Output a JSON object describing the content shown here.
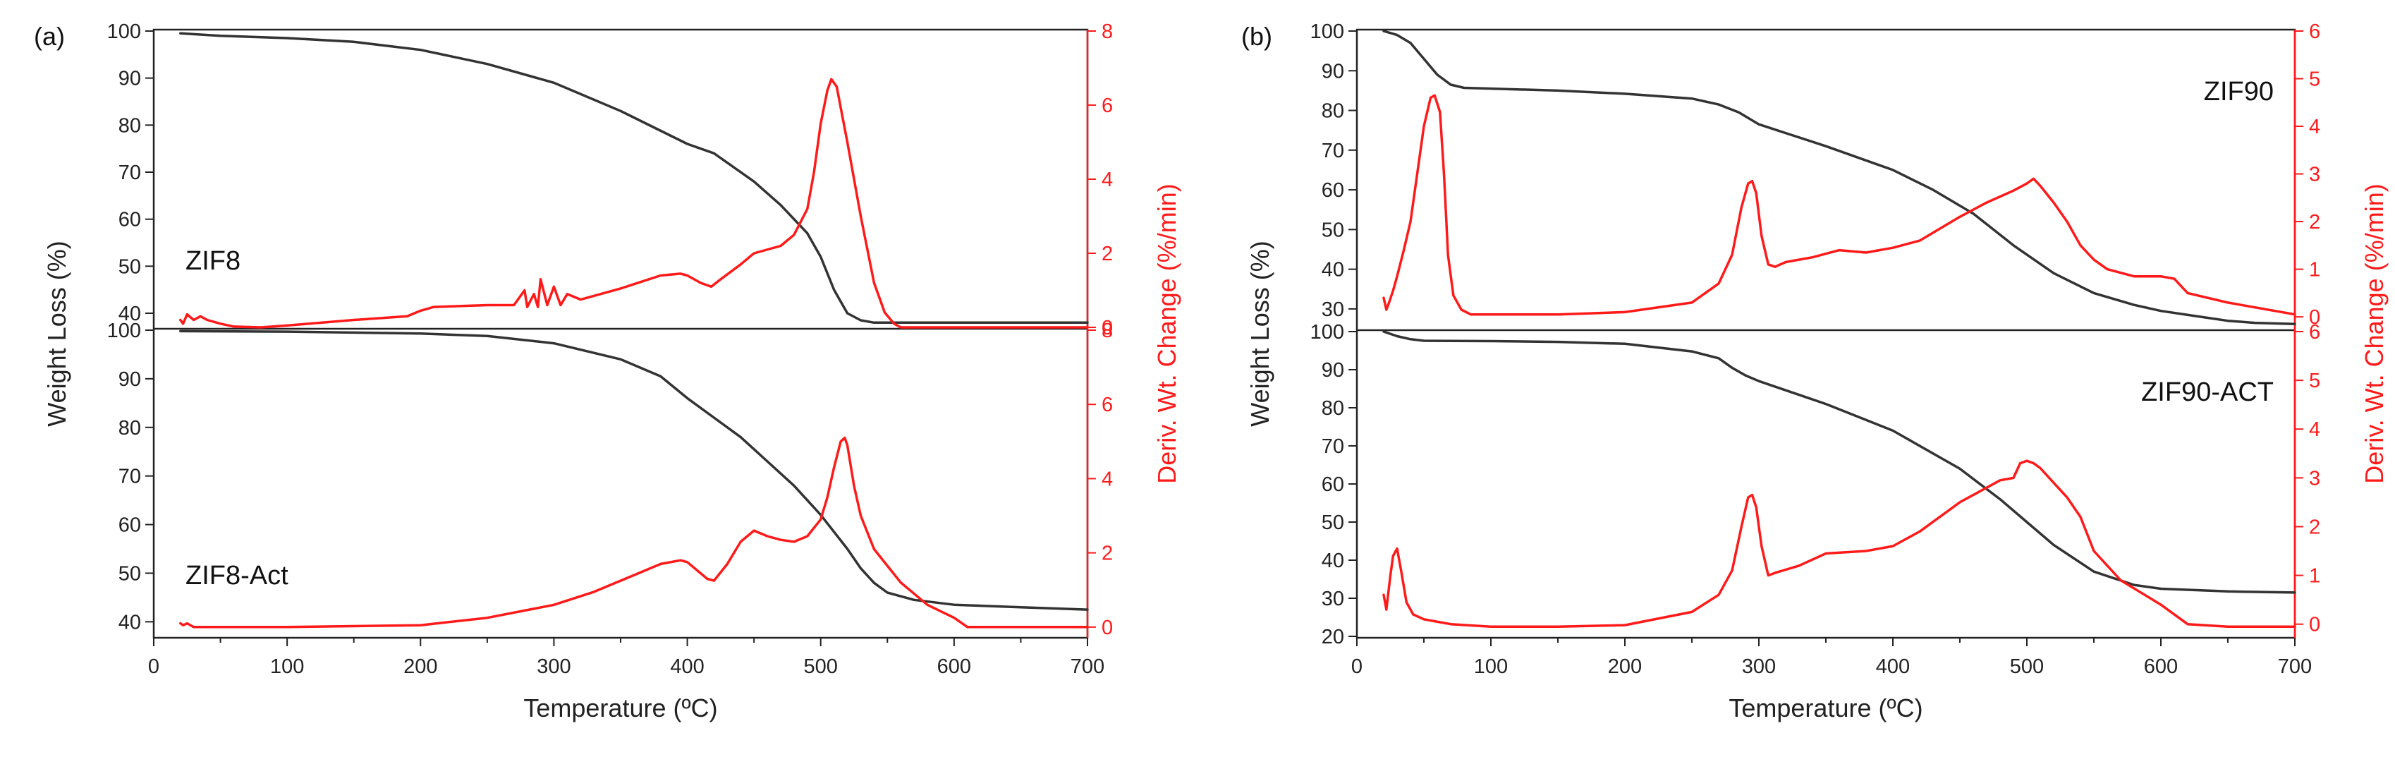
{
  "panels": [
    {
      "label": "(a)",
      "xlabel": "Temperature (ºC)",
      "ylabel_left": "Weight Loss (%)",
      "ylabel_right": "Deriv. Wt. Change (%/min)",
      "xlim": [
        0,
        700
      ],
      "xticks": [
        0,
        100,
        200,
        300,
        400,
        500,
        600,
        700
      ],
      "subplots": [
        {
          "annotation": "ZIF8",
          "ylim_left": [
            37,
            100
          ],
          "ylim_right": [
            0,
            8
          ],
          "yticks_left": [
            40,
            50,
            60,
            70,
            80,
            90,
            100
          ],
          "yticks_right": [
            0,
            2,
            4,
            6,
            8
          ]
        },
        {
          "annotation": "ZIF8-Act",
          "ylim_left": [
            37,
            100
          ],
          "ylim_right": [
            -0.25,
            8
          ],
          "yticks_left": [
            40,
            50,
            60,
            70,
            80,
            90,
            100
          ],
          "yticks_right": [
            0,
            2,
            4,
            6,
            8
          ]
        }
      ]
    },
    {
      "label": "(b)",
      "xlabel": "Temperature (ºC)",
      "ylabel_left": "Weight Loss (%)",
      "ylabel_right": "Deriv. Wt. Change (%/min)",
      "xlim": [
        0,
        700
      ],
      "xticks": [
        0,
        100,
        200,
        300,
        400,
        500,
        600,
        700
      ],
      "subplots": [
        {
          "annotation": "ZIF90",
          "ylim_left": [
            25,
            100
          ],
          "ylim_right": [
            -0.25,
            6
          ],
          "yticks_left": [
            30,
            40,
            50,
            60,
            70,
            80,
            90,
            100
          ],
          "yticks_right": [
            0,
            1,
            2,
            3,
            4,
            5,
            6
          ]
        },
        {
          "annotation": "ZIF90-ACT",
          "ylim_left": [
            20,
            100
          ],
          "ylim_right": [
            -0.25,
            6
          ],
          "yticks_left": [
            20,
            30,
            40,
            50,
            60,
            70,
            80,
            90,
            100
          ],
          "yticks_right": [
            0,
            1,
            2,
            3,
            4,
            5,
            6
          ]
        }
      ]
    }
  ],
  "chart_data": [
    {
      "type": "line",
      "title": "(a) ZIF8",
      "xlabel": "Temperature (ºC)",
      "ylabel": "Weight Loss (%)",
      "y2label": "Deriv. Wt. Change (%/min)",
      "xlim": [
        0,
        700
      ],
      "series": [
        {
          "name": "Weight Loss",
          "axis": "left",
          "color": "#333333",
          "x": [
            20,
            50,
            100,
            150,
            200,
            250,
            300,
            350,
            400,
            420,
            450,
            470,
            490,
            500,
            510,
            520,
            530,
            540,
            550,
            560,
            600,
            700
          ],
          "y": [
            99.5,
            99,
            98.5,
            97.7,
            96,
            93,
            89,
            83,
            76,
            74,
            68,
            63,
            57,
            52,
            45,
            40,
            38.5,
            38,
            38,
            38,
            38,
            38
          ]
        },
        {
          "name": "Deriv. Wt. Change",
          "axis": "right",
          "color": "#ff1a1a",
          "x": [
            20,
            22,
            25,
            30,
            35,
            40,
            50,
            60,
            80,
            100,
            150,
            190,
            200,
            210,
            250,
            270,
            278,
            280,
            285,
            288,
            290,
            295,
            300,
            305,
            310,
            320,
            350,
            380,
            395,
            400,
            410,
            418,
            425,
            440,
            450,
            470,
            480,
            490,
            495,
            500,
            505,
            508,
            512,
            520,
            530,
            540,
            548,
            555,
            560,
            580,
            600,
            700
          ],
          "y": [
            0.2,
            0.1,
            0.35,
            0.2,
            0.3,
            0.2,
            0.1,
            0.02,
            0.0,
            0.05,
            0.2,
            0.3,
            0.45,
            0.55,
            0.6,
            0.6,
            1.0,
            0.55,
            0.9,
            0.55,
            1.3,
            0.6,
            1.1,
            0.6,
            0.9,
            0.75,
            1.05,
            1.4,
            1.45,
            1.4,
            1.2,
            1.1,
            1.3,
            1.7,
            2.0,
            2.2,
            2.5,
            3.2,
            4.2,
            5.5,
            6.4,
            6.7,
            6.5,
            5.0,
            3.0,
            1.2,
            0.4,
            0.1,
            0.0,
            0.0,
            0.0,
            0.0
          ]
        }
      ]
    },
    {
      "type": "line",
      "title": "(a) ZIF8-Act",
      "xlabel": "Temperature (ºC)",
      "ylabel": "Weight Loss (%)",
      "y2label": "Deriv. Wt. Change (%/min)",
      "xlim": [
        0,
        700
      ],
      "series": [
        {
          "name": "Weight Loss",
          "axis": "left",
          "color": "#333333",
          "x": [
            20,
            100,
            200,
            250,
            300,
            350,
            380,
            400,
            420,
            440,
            460,
            480,
            500,
            520,
            530,
            540,
            550,
            570,
            600,
            650,
            700
          ],
          "y": [
            99.8,
            99.7,
            99.3,
            98.8,
            97.3,
            94,
            90.5,
            86,
            82,
            78,
            73,
            68,
            62,
            55,
            51,
            48,
            46,
            44.5,
            43.5,
            43,
            42.5
          ]
        },
        {
          "name": "Deriv. Wt. Change",
          "axis": "right",
          "color": "#ff1a1a",
          "x": [
            20,
            22,
            25,
            30,
            40,
            100,
            200,
            250,
            300,
            330,
            360,
            380,
            395,
            400,
            405,
            415,
            420,
            430,
            440,
            450,
            460,
            470,
            480,
            490,
            500,
            505,
            510,
            515,
            518,
            520,
            525,
            530,
            540,
            560,
            580,
            600,
            610,
            700
          ],
          "y": [
            0.1,
            0.05,
            0.1,
            0.0,
            0.0,
            0.0,
            0.05,
            0.25,
            0.6,
            0.95,
            1.4,
            1.7,
            1.8,
            1.75,
            1.6,
            1.3,
            1.25,
            1.7,
            2.3,
            2.6,
            2.45,
            2.35,
            2.3,
            2.45,
            2.9,
            3.5,
            4.3,
            5.0,
            5.1,
            4.9,
            3.8,
            3.0,
            2.1,
            1.2,
            0.6,
            0.25,
            0.0,
            0.0
          ]
        }
      ]
    },
    {
      "type": "line",
      "title": "(b) ZIF90",
      "xlabel": "Temperature (ºC)",
      "ylabel": "Weight Loss (%)",
      "y2label": "Deriv. Wt. Change (%/min)",
      "xlim": [
        0,
        700
      ],
      "series": [
        {
          "name": "Weight Loss",
          "axis": "left",
          "color": "#333333",
          "x": [
            20,
            30,
            40,
            50,
            60,
            70,
            80,
            100,
            150,
            200,
            250,
            270,
            285,
            300,
            350,
            400,
            430,
            460,
            490,
            520,
            550,
            580,
            600,
            630,
            650,
            670,
            700
          ],
          "y": [
            100,
            99,
            97,
            93,
            89,
            86.5,
            85.7,
            85.5,
            85,
            84.2,
            83,
            81.5,
            79.5,
            76.5,
            71,
            65,
            60,
            54,
            46,
            39,
            34,
            31,
            29.5,
            28,
            27,
            26.5,
            26.2
          ]
        },
        {
          "name": "Deriv. Wt. Change",
          "axis": "right",
          "color": "#ff1a1a",
          "x": [
            20,
            22,
            24,
            27,
            30,
            35,
            40,
            45,
            50,
            55,
            58,
            62,
            65,
            68,
            72,
            78,
            85,
            100,
            150,
            200,
            250,
            270,
            280,
            287,
            292,
            295,
            298,
            302,
            307,
            312,
            320,
            340,
            360,
            380,
            400,
            420,
            450,
            470,
            490,
            500,
            505,
            510,
            520,
            530,
            540,
            550,
            560,
            580,
            600,
            610,
            620,
            650,
            700
          ],
          "y": [
            0.4,
            0.15,
            0.3,
            0.55,
            0.85,
            1.4,
            2.0,
            3.0,
            4.0,
            4.6,
            4.65,
            4.3,
            3.0,
            1.3,
            0.45,
            0.15,
            0.05,
            0.05,
            0.05,
            0.1,
            0.3,
            0.7,
            1.3,
            2.3,
            2.8,
            2.85,
            2.6,
            1.7,
            1.1,
            1.05,
            1.15,
            1.25,
            1.4,
            1.35,
            1.45,
            1.6,
            2.1,
            2.4,
            2.65,
            2.8,
            2.9,
            2.75,
            2.4,
            2.0,
            1.5,
            1.2,
            1.0,
            0.85,
            0.85,
            0.8,
            0.5,
            0.3,
            0.05
          ]
        }
      ]
    },
    {
      "type": "line",
      "title": "(b) ZIF90-ACT",
      "xlabel": "Temperature (ºC)",
      "ylabel": "Weight Loss (%)",
      "y2label": "Deriv. Wt. Change (%/min)",
      "xlim": [
        0,
        700
      ],
      "series": [
        {
          "name": "Weight Loss",
          "axis": "left",
          "color": "#333333",
          "x": [
            20,
            30,
            40,
            50,
            100,
            150,
            200,
            250,
            270,
            280,
            290,
            300,
            350,
            400,
            450,
            480,
            500,
            520,
            550,
            580,
            600,
            650,
            700
          ],
          "y": [
            100,
            98.8,
            98,
            97.6,
            97.5,
            97.3,
            96.8,
            94.8,
            93,
            90.5,
            88.5,
            87,
            81,
            74,
            64,
            56,
            50,
            44,
            37,
            33.5,
            32.5,
            31.8,
            31.5
          ]
        },
        {
          "name": "Deriv. Wt. Change",
          "axis": "right",
          "color": "#ff1a1a",
          "x": [
            20,
            22,
            25,
            27,
            30,
            33,
            37,
            42,
            50,
            70,
            100,
            150,
            200,
            250,
            270,
            280,
            287,
            292,
            295,
            298,
            302,
            307,
            312,
            330,
            350,
            380,
            400,
            420,
            450,
            480,
            490,
            495,
            500,
            505,
            510,
            520,
            530,
            540,
            550,
            570,
            600,
            610,
            620,
            650,
            700
          ],
          "y": [
            0.6,
            0.3,
            1.0,
            1.4,
            1.55,
            1.1,
            0.45,
            0.2,
            0.1,
            0.0,
            -0.05,
            -0.05,
            -0.02,
            0.25,
            0.6,
            1.1,
            2.0,
            2.6,
            2.65,
            2.4,
            1.6,
            1.0,
            1.05,
            1.2,
            1.45,
            1.5,
            1.6,
            1.9,
            2.5,
            2.95,
            3.0,
            3.3,
            3.35,
            3.3,
            3.2,
            2.9,
            2.6,
            2.2,
            1.5,
            0.9,
            0.4,
            0.2,
            0.0,
            -0.05,
            -0.05
          ]
        }
      ]
    }
  ]
}
